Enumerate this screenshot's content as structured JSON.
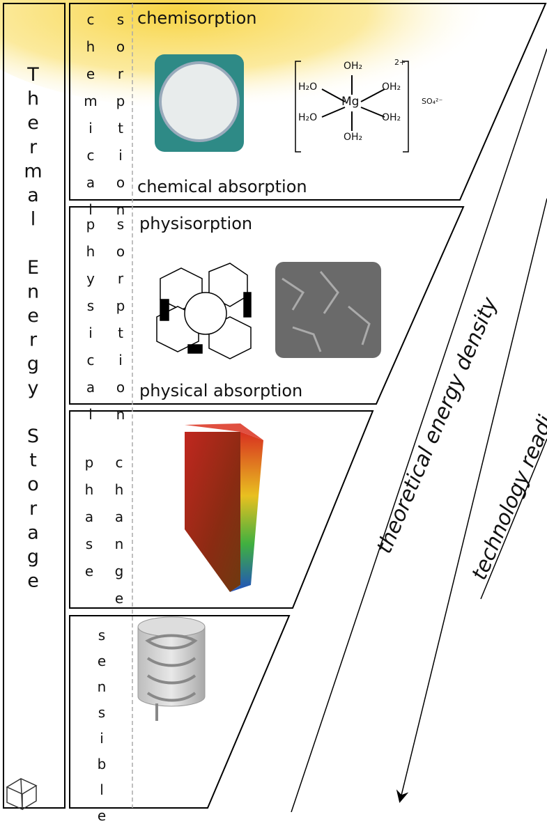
{
  "sidebar": {
    "title": "Thermal Energy Storage"
  },
  "panels": [
    {
      "left": "chemical",
      "right": "sorption",
      "top": "chemisorption",
      "bottom": "chemical absorption",
      "molecule": {
        "ligands": [
          "OH₂",
          "H₂O",
          "OH₂",
          "H₂O",
          "OH₂",
          "OH₂"
        ],
        "center": "Mg",
        "charge": "2+",
        "anion": "SO₄²⁻"
      }
    },
    {
      "left": "physical",
      "right": "sorption",
      "top": "physisorption",
      "bottom": "physical absorption"
    },
    {
      "left": "phase",
      "right": "change"
    },
    {
      "left": "sensible"
    }
  ],
  "arrows": [
    {
      "label": "theoretical energy density"
    },
    {
      "label": "technology readi"
    }
  ]
}
